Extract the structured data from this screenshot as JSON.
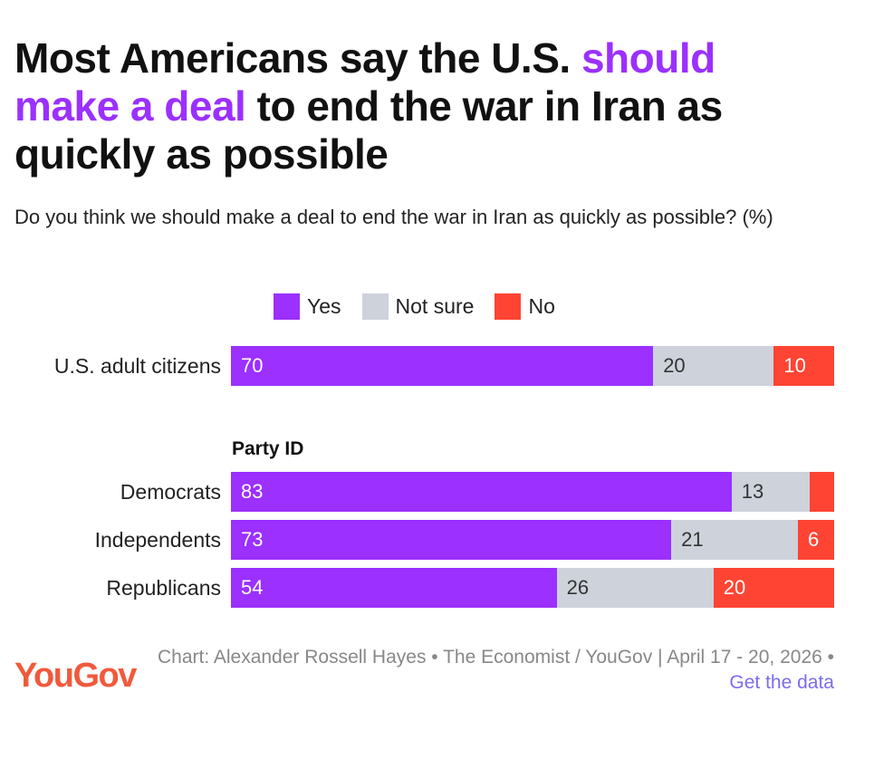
{
  "title": {
    "part1": "Most Americans say the U.S.",
    "highlight": "should make a deal",
    "part2": "to end the war in Iran as quickly as possible"
  },
  "subtitle": "Do you think we should make a deal to end the war in Iran as quickly as possible? (%)",
  "legend": [
    {
      "label": "Yes",
      "color": "#9b30ff"
    },
    {
      "label": "Not sure",
      "color": "#cdd2db"
    },
    {
      "label": "No",
      "color": "#ff4433"
    }
  ],
  "chart_data": {
    "type": "bar",
    "orientation": "horizontal",
    "stacked": true,
    "xlim": [
      0,
      100
    ],
    "categories": [
      "U.S. adult citizens",
      "Democrats",
      "Independents",
      "Republicans"
    ],
    "group_label": "Party ID",
    "series": [
      {
        "name": "Yes",
        "values": [
          70,
          83,
          73,
          54
        ]
      },
      {
        "name": "Not sure",
        "values": [
          20,
          13,
          21,
          26
        ]
      },
      {
        "name": "No",
        "values": [
          10,
          4,
          6,
          20
        ]
      }
    ],
    "data_labels": [
      [
        "70",
        "20",
        "10"
      ],
      [
        "83",
        "13",
        ""
      ],
      [
        "73",
        "21",
        "6"
      ],
      [
        "54",
        "26",
        "20"
      ]
    ]
  },
  "footer": {
    "logo_you": "You",
    "logo_gov": "Gov",
    "credit": "Chart: Alexander Rossell Hayes • The Economist / YouGov | April 17 - 20, 2026 •",
    "link": "Get the data",
    "logo_color": "#f05a3c"
  }
}
